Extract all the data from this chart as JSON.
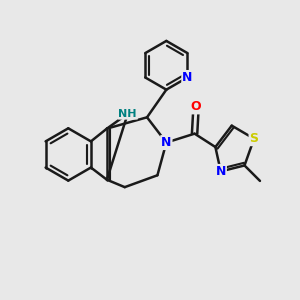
{
  "background_color": "#e8e8e8",
  "line_color": "#1a1a1a",
  "bond_width": 1.8,
  "atom_colors": {
    "N": "#0000ff",
    "NH": "#008080",
    "O": "#ff0000",
    "S": "#cccc00",
    "C": "#1a1a1a"
  },
  "figsize": [
    3.0,
    3.0
  ],
  "dpi": 100,
  "xlim": [
    0,
    10
  ],
  "ylim": [
    0,
    10
  ]
}
